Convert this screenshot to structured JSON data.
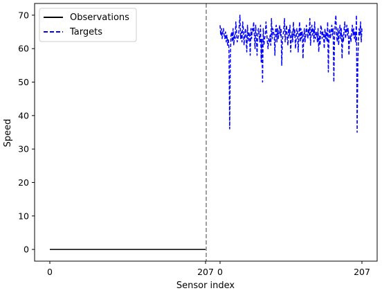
{
  "chart_data": {
    "type": "line",
    "title": "",
    "xlabel": "Sensor index",
    "ylabel": "Speed",
    "ylim": [
      -3.5,
      73.5
    ],
    "yticks": [
      0,
      10,
      20,
      30,
      40,
      50,
      60,
      70
    ],
    "xtick_labels": [
      {
        "segment": "observations",
        "index": 0,
        "label": "0"
      },
      {
        "segment": "observations",
        "index": 207,
        "label": "207"
      },
      {
        "segment": "targets",
        "index": 0,
        "label": "0"
      },
      {
        "segment": "targets",
        "index": 207,
        "label": "207"
      }
    ],
    "divider": {
      "style": "dashed",
      "color": "#808080"
    },
    "legend": {
      "placement": "top-left"
    },
    "series": [
      {
        "name": "Observations",
        "segment": "observations",
        "style": "solid",
        "color": "#000000",
        "constant_value": 0,
        "x_range": [
          0,
          207
        ]
      },
      {
        "name": "Targets",
        "segment": "targets",
        "style": "dashed",
        "color": "#0000ff",
        "x_range": [
          0,
          207
        ],
        "values": [
          67,
          64,
          66,
          63,
          65,
          66,
          64,
          63,
          65,
          62,
          64,
          61,
          63,
          60,
          36,
          58,
          64,
          65,
          62,
          66,
          61,
          64,
          63,
          68,
          65,
          62,
          63,
          64,
          67,
          70,
          63,
          65,
          62,
          68,
          66,
          61,
          64,
          66,
          63,
          59,
          67,
          62,
          65,
          64,
          58,
          66,
          63,
          66,
          65,
          68,
          64,
          60,
          67,
          63,
          58,
          65,
          66,
          64,
          62,
          67,
          56,
          63,
          50,
          66,
          61,
          63,
          64,
          68,
          65,
          62,
          60,
          63,
          62,
          64,
          61,
          69,
          63,
          66,
          65,
          64,
          58,
          66,
          67,
          62,
          66,
          63,
          65,
          67,
          64,
          66,
          55,
          63,
          64,
          66,
          69,
          62,
          65,
          67,
          63,
          61,
          66,
          64,
          67,
          59,
          63,
          65,
          62,
          68,
          64,
          66,
          60,
          63,
          66,
          65,
          59,
          64,
          68,
          62,
          66,
          63,
          65,
          57,
          63,
          66,
          62,
          64,
          67,
          65,
          63,
          66,
          64,
          69,
          61,
          65,
          67,
          64,
          66,
          62,
          68,
          63,
          64,
          65,
          62,
          66,
          59,
          64,
          61,
          67,
          66,
          63,
          65,
          64,
          60,
          66,
          63,
          65,
          62,
          68,
          53,
          64,
          66,
          63,
          65,
          67,
          64,
          66,
          50,
          63,
          68,
          70,
          64,
          62,
          66,
          61,
          65,
          67,
          63,
          66,
          57,
          64,
          62,
          66,
          68,
          63,
          65,
          67,
          64,
          66,
          58,
          63,
          64,
          62,
          65,
          67,
          64,
          66,
          63,
          65,
          62,
          70,
          35,
          56,
          63,
          66,
          64,
          68,
          62,
          66
        ]
      }
    ]
  }
}
